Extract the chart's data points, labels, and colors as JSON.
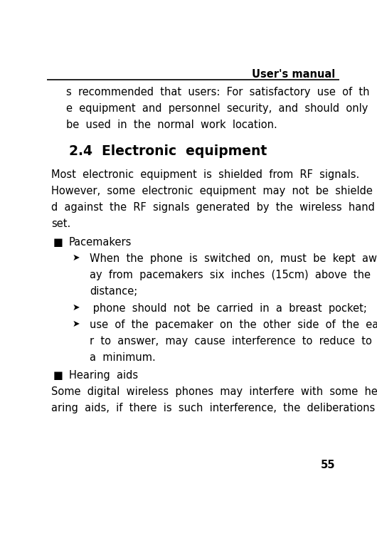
{
  "bg_color": "#ffffff",
  "header_text": "User's manual",
  "header_line_color": "#000000",
  "footer_number": "55",
  "title": "2.4  Electronic  equipment",
  "body_lines": [
    "s  recommended  that  users:  For  satisfactory  use  of  th",
    "e  equipment  and  personnel  security,  and  should  only",
    "be  used  in  the  normal  work  location."
  ],
  "paragraph1_lines": [
    "Most  electronic  equipment  is  shielded  from  RF  signals.",
    "However,  some  electronic  equipment  may  not  be  shielde",
    "d  against  the  RF  signals  generated  by  the  wireless  hand",
    "set."
  ],
  "bullet1_label": "Pacemakers",
  "sub_bullets": [
    {
      "lines": [
        "When  the  phone  is  switched  on,  must  be  kept  aw",
        "ay  from  pacemakers  six  inches  (15cm)  above  the",
        "distance;"
      ]
    },
    {
      "lines": [
        " phone  should  not  be  carried  in  a  breast  pocket;"
      ]
    },
    {
      "lines": [
        "use  of  the  pacemaker  on  the  other  side  of  the  ea",
        "r  to  answer,  may  cause  interference  to  reduce  to",
        "a  minimum."
      ]
    }
  ],
  "bullet2_label": "Hearing  aids",
  "paragraph2_lines": [
    "Some  digital  wireless  phones  may  interfere  with  some  he",
    "aring  aids,  if  there  is  such  interference,  the  deliberations"
  ],
  "font_family": "DejaVu Sans",
  "font_size_body": 10.5,
  "font_size_title": 13.5,
  "font_size_header": 10.5,
  "text_color": "#000000"
}
